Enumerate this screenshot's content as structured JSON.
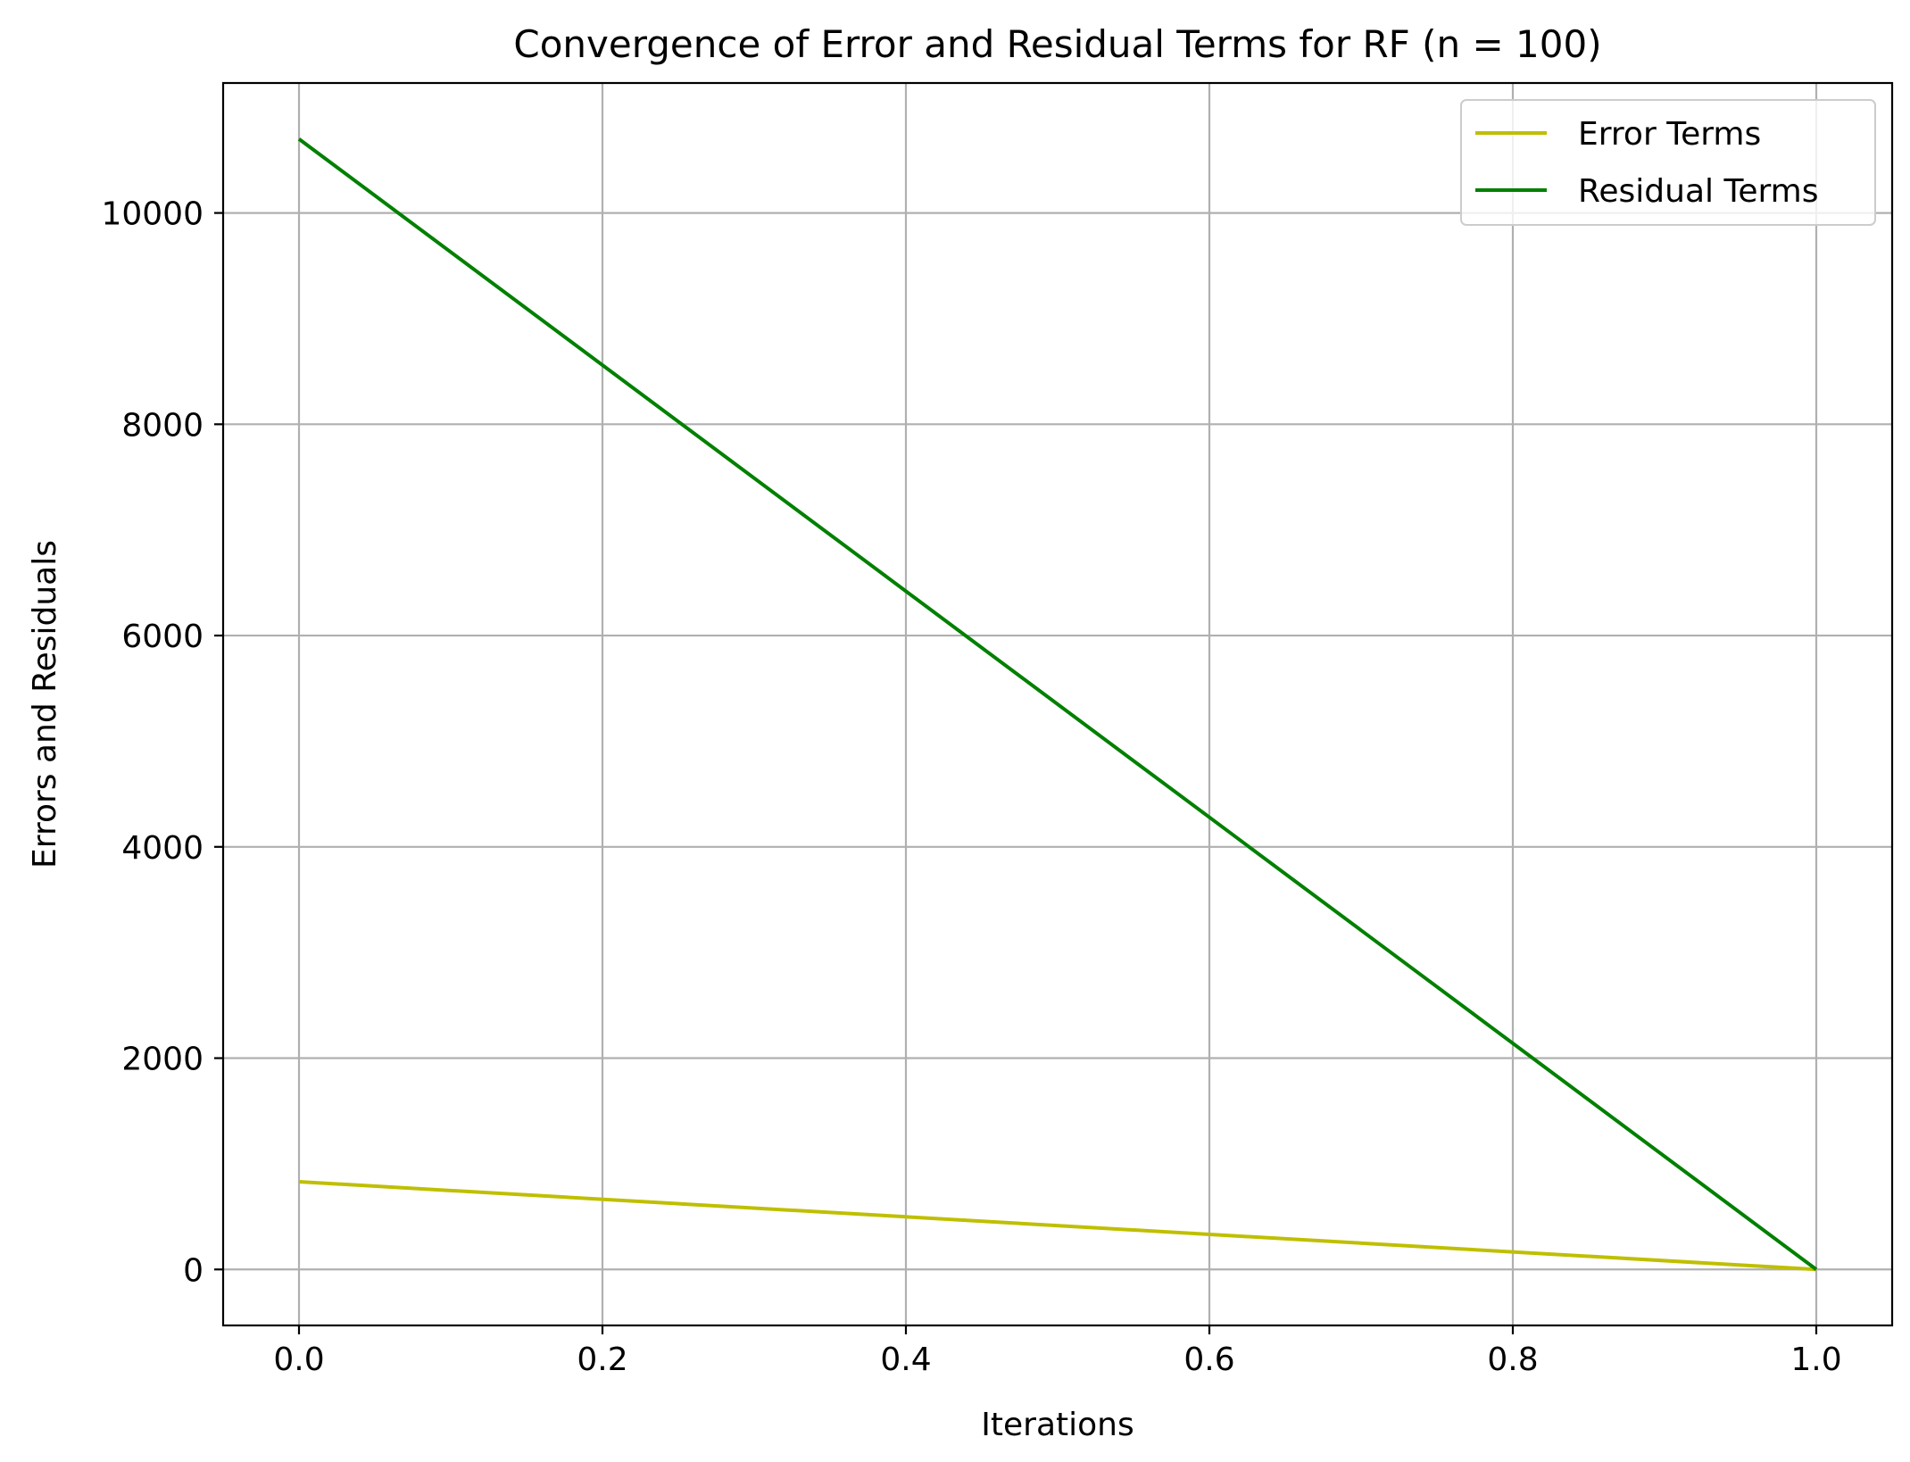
{
  "chart_data": {
    "type": "line",
    "title": "Convergence of Error and Residual Terms for RF (n = 100)",
    "xlabel": "Iterations",
    "ylabel": "Errors and Residuals",
    "xlim": [
      -0.05,
      1.05
    ],
    "ylim": [
      -530,
      11230
    ],
    "xticks": [
      0.0,
      0.2,
      0.4,
      0.6,
      0.8,
      1.0
    ],
    "xtick_labels": [
      "0.0",
      "0.2",
      "0.4",
      "0.6",
      "0.8",
      "1.0"
    ],
    "yticks": [
      0,
      2000,
      4000,
      6000,
      8000,
      10000
    ],
    "ytick_labels": [
      "0",
      "2000",
      "4000",
      "6000",
      "8000",
      "10000"
    ],
    "grid": true,
    "legend_position": "top-right",
    "series": [
      {
        "name": "Error Terms",
        "color": "#bfbf00",
        "x": [
          0,
          1
        ],
        "y": [
          830,
          0
        ]
      },
      {
        "name": "Residual Terms",
        "color": "#008000",
        "x": [
          0,
          1
        ],
        "y": [
          10700,
          0
        ]
      }
    ]
  }
}
